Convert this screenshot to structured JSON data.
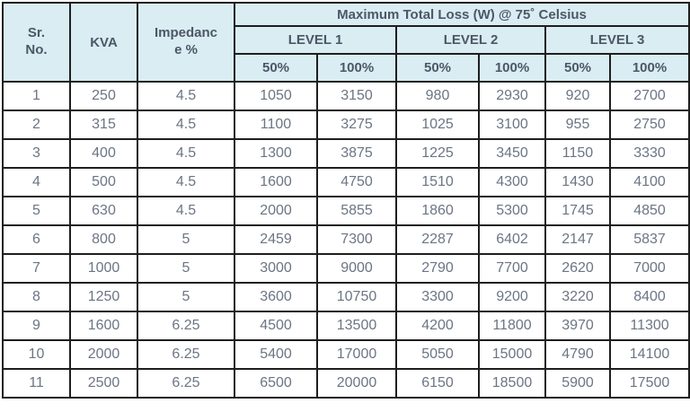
{
  "ui": {
    "title": "Maximum Total Loss (W) @ 75˚ Celsius",
    "headers": {
      "sr_no_lines": [
        "Sr.",
        "No."
      ],
      "kva": "KVA",
      "impedance_lines": [
        "Impedanc",
        "e %"
      ]
    },
    "levels": [
      "LEVEL 1",
      "LEVEL 2",
      "LEVEL 3"
    ],
    "loads": [
      "50%",
      "100%",
      "50%",
      "100%",
      "50%",
      "100%"
    ]
  },
  "colors": {
    "header_bg": "#d9edf3",
    "header_text": "#4d5766",
    "body_text": "#6b7584",
    "border": "#1e1e1e"
  },
  "chart_data": {
    "type": "table",
    "title": "Maximum Total Loss (W) @ 75˚ Celsius",
    "column_groups": [
      "LEVEL 1",
      "LEVEL 2",
      "LEVEL 3"
    ],
    "columns": [
      "Sr. No.",
      "KVA",
      "Impedance %",
      "LEVEL 1 50%",
      "LEVEL 1 100%",
      "LEVEL 2 50%",
      "LEVEL 2 100%",
      "LEVEL 3 50%",
      "LEVEL 3 100%"
    ],
    "rows": [
      [
        1,
        250,
        4.5,
        1050,
        3150,
        980,
        2930,
        920,
        2700
      ],
      [
        2,
        315,
        4.5,
        1100,
        3275,
        1025,
        3100,
        955,
        2750
      ],
      [
        3,
        400,
        4.5,
        1300,
        3875,
        1225,
        3450,
        1150,
        3330
      ],
      [
        4,
        500,
        4.5,
        1600,
        4750,
        1510,
        4300,
        1430,
        4100
      ],
      [
        5,
        630,
        4.5,
        2000,
        5855,
        1860,
        5300,
        1745,
        4850
      ],
      [
        6,
        800,
        5,
        2459,
        7300,
        2287,
        6402,
        2147,
        5837
      ],
      [
        7,
        1000,
        5,
        3000,
        9000,
        2790,
        7700,
        2620,
        7000
      ],
      [
        8,
        1250,
        5,
        3600,
        10750,
        3300,
        9200,
        3220,
        8400
      ],
      [
        9,
        1600,
        6.25,
        4500,
        13500,
        4200,
        11800,
        3970,
        11300
      ],
      [
        10,
        2000,
        6.25,
        5400,
        17000,
        5050,
        15000,
        4790,
        14100
      ],
      [
        11,
        2500,
        6.25,
        6500,
        20000,
        6150,
        18500,
        5900,
        17500
      ]
    ]
  }
}
